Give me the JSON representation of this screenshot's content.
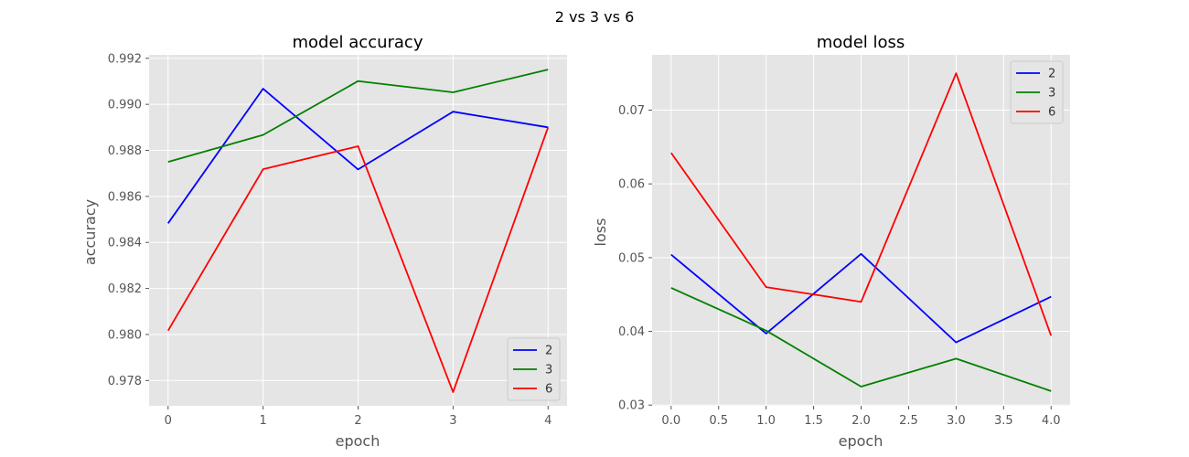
{
  "figure": {
    "suptitle": "2 vs 3 vs 6"
  },
  "chart_data": [
    {
      "type": "line",
      "title": "model accuracy",
      "xlabel": "epoch",
      "ylabel": "accuracy",
      "xlim": [
        -0.2,
        4.2
      ],
      "ylim": [
        0.9769,
        0.99215
      ],
      "xticks": [
        0,
        1,
        2,
        3,
        4
      ],
      "xtick_labels": [
        "0",
        "1",
        "2",
        "3",
        "4"
      ],
      "yticks": [
        0.978,
        0.98,
        0.982,
        0.984,
        0.986,
        0.988,
        0.99,
        0.992
      ],
      "ytick_labels": [
        "0.978",
        "0.980",
        "0.982",
        "0.984",
        "0.986",
        "0.988",
        "0.990",
        "0.992"
      ],
      "grid": true,
      "legend": "lower-right",
      "x": [
        0,
        1,
        2,
        3,
        4
      ],
      "series": [
        {
          "name": "2",
          "color": "#0000ff",
          "values": [
            0.98483,
            0.99068,
            0.98717,
            0.98968,
            0.989
          ]
        },
        {
          "name": "3",
          "color": "#008000",
          "values": [
            0.9875,
            0.98867,
            0.99101,
            0.99052,
            0.99151
          ]
        },
        {
          "name": "6",
          "color": "#ff0000",
          "values": [
            0.98017,
            0.98718,
            0.98818,
            0.9775,
            0.989
          ]
        }
      ]
    },
    {
      "type": "line",
      "title": "model loss",
      "xlabel": "epoch",
      "ylabel": "loss",
      "xlim": [
        -0.2,
        4.2
      ],
      "ylim": [
        0.0299,
        0.0775
      ],
      "xticks": [
        0,
        0.5,
        1,
        1.5,
        2,
        2.5,
        3,
        3.5,
        4
      ],
      "xtick_labels": [
        "0.0",
        "0.5",
        "1.0",
        "1.5",
        "2.0",
        "2.5",
        "3.0",
        "3.5",
        "4.0"
      ],
      "yticks": [
        0.03,
        0.04,
        0.05,
        0.06,
        0.07
      ],
      "ytick_labels": [
        "0.03",
        "0.04",
        "0.05",
        "0.06",
        "0.07"
      ],
      "grid": true,
      "legend": "top-right",
      "x": [
        0,
        1,
        2,
        3,
        4
      ],
      "series": [
        {
          "name": "2",
          "color": "#0000ff",
          "values": [
            0.0504,
            0.0397,
            0.0505,
            0.0385,
            0.0447
          ]
        },
        {
          "name": "3",
          "color": "#008000",
          "values": [
            0.0459,
            0.0401,
            0.0325,
            0.0363,
            0.0319
          ]
        },
        {
          "name": "6",
          "color": "#ff0000",
          "values": [
            0.0642,
            0.046,
            0.044,
            0.075,
            0.0394
          ]
        }
      ]
    }
  ]
}
